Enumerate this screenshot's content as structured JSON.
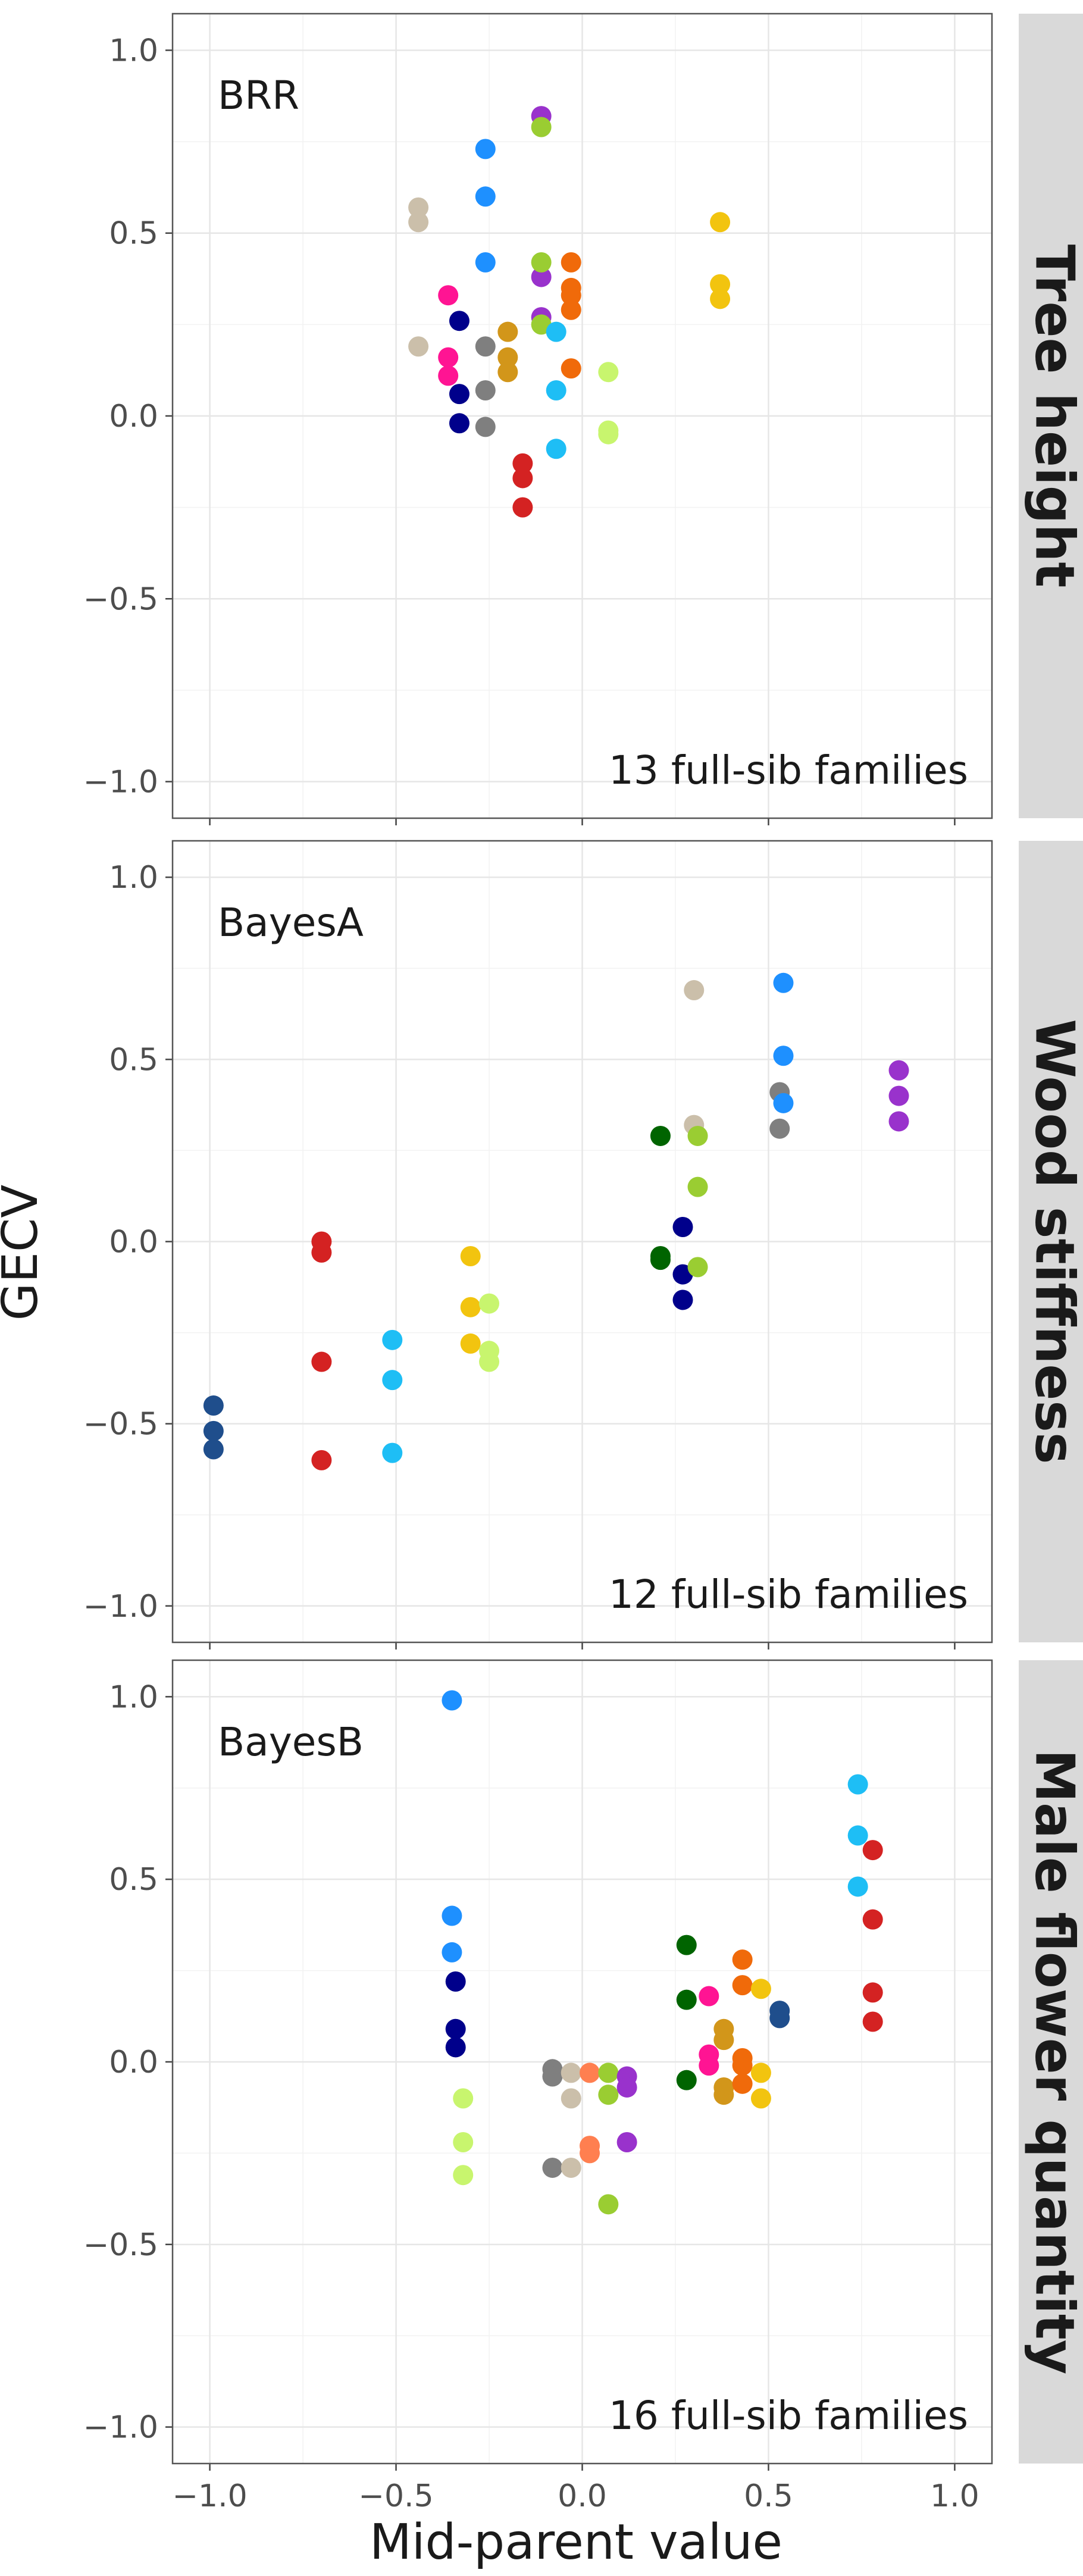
{
  "figure": {
    "xlabel": "Mid-parent value",
    "ylabel": "GECV"
  },
  "chart_data": [
    {
      "type": "scatter",
      "facet": "Tree height",
      "method": "BRR",
      "annotation": "13 full-sib families",
      "xlabel": "Mid-parent value",
      "ylabel": "GECV",
      "xlim": [
        -1.1,
        1.1
      ],
      "ylim": [
        -1.1,
        1.1
      ],
      "xticks": [
        "−1.0",
        "−0.5",
        "0.0",
        "0.5",
        "1.0"
      ],
      "yticks": [
        "−1.0",
        "−0.5",
        "0.0",
        "0.5",
        "1.0"
      ],
      "grid": true,
      "series": [
        {
          "color": "#CBBFAA",
          "points": [
            [
              -0.44,
              0.57
            ],
            [
              -0.44,
              0.53
            ],
            [
              -0.44,
              0.19
            ]
          ]
        },
        {
          "color": "#1E90FF",
          "points": [
            [
              -0.26,
              0.73
            ],
            [
              -0.26,
              0.6
            ],
            [
              -0.26,
              0.42
            ]
          ]
        },
        {
          "color": "#9932CC",
          "points": [
            [
              -0.11,
              0.82
            ],
            [
              -0.11,
              0.38
            ],
            [
              -0.11,
              0.27
            ]
          ]
        },
        {
          "color": "#9ACD32",
          "points": [
            [
              -0.11,
              0.79
            ],
            [
              -0.11,
              0.42
            ],
            [
              -0.11,
              0.25
            ]
          ]
        },
        {
          "color": "#F06A0A",
          "points": [
            [
              -0.03,
              0.42
            ],
            [
              -0.03,
              0.35
            ],
            [
              -0.03,
              0.33
            ],
            [
              -0.03,
              0.29
            ],
            [
              -0.03,
              0.13
            ]
          ]
        },
        {
          "color": "#F2C40F",
          "points": [
            [
              0.37,
              0.53
            ],
            [
              0.37,
              0.36
            ],
            [
              0.37,
              0.32
            ]
          ]
        },
        {
          "color": "#FF1493",
          "points": [
            [
              -0.36,
              0.33
            ],
            [
              -0.36,
              0.16
            ],
            [
              -0.36,
              0.11
            ]
          ]
        },
        {
          "color": "#00008B",
          "points": [
            [
              -0.33,
              0.26
            ],
            [
              -0.33,
              0.06
            ],
            [
              -0.33,
              -0.02
            ]
          ]
        },
        {
          "color": "#7F7F7F",
          "points": [
            [
              -0.26,
              0.19
            ],
            [
              -0.26,
              0.07
            ],
            [
              -0.26,
              -0.03
            ]
          ]
        },
        {
          "color": "#D2961A",
          "points": [
            [
              -0.2,
              0.23
            ],
            [
              -0.2,
              0.16
            ],
            [
              -0.2,
              0.12
            ]
          ]
        },
        {
          "color": "#1EBEF5",
          "points": [
            [
              -0.07,
              0.23
            ],
            [
              -0.07,
              0.07
            ],
            [
              -0.07,
              -0.09
            ]
          ]
        },
        {
          "color": "#C8F56E",
          "points": [
            [
              0.07,
              0.12
            ],
            [
              0.07,
              -0.04
            ],
            [
              0.07,
              -0.05
            ]
          ]
        },
        {
          "color": "#D42222",
          "points": [
            [
              -0.16,
              -0.13
            ],
            [
              -0.16,
              -0.17
            ],
            [
              -0.16,
              -0.25
            ]
          ]
        }
      ]
    },
    {
      "type": "scatter",
      "facet": "Wood stiffness",
      "method": "BayesA",
      "annotation": "12 full-sib families",
      "xlabel": "Mid-parent value",
      "ylabel": "GECV",
      "xlim": [
        -1.1,
        1.1
      ],
      "ylim": [
        -1.1,
        1.1
      ],
      "xticks": [
        "−1.0",
        "−0.5",
        "0.0",
        "0.5",
        "1.0"
      ],
      "yticks": [
        "−1.0",
        "−0.5",
        "0.0",
        "0.5",
        "1.0"
      ],
      "grid": true,
      "series": [
        {
          "color": "#1F4E8C",
          "points": [
            [
              -0.99,
              -0.45
            ],
            [
              -0.99,
              -0.52
            ],
            [
              -0.99,
              -0.57
            ]
          ]
        },
        {
          "color": "#D42222",
          "points": [
            [
              -0.7,
              0.0
            ],
            [
              -0.7,
              -0.03
            ],
            [
              -0.7,
              -0.33
            ],
            [
              -0.7,
              -0.6
            ]
          ]
        },
        {
          "color": "#1EBEF5",
          "points": [
            [
              -0.51,
              -0.27
            ],
            [
              -0.51,
              -0.38
            ],
            [
              -0.51,
              -0.58
            ]
          ]
        },
        {
          "color": "#F2C40F",
          "points": [
            [
              -0.3,
              -0.04
            ],
            [
              -0.3,
              -0.18
            ],
            [
              -0.3,
              -0.28
            ]
          ]
        },
        {
          "color": "#C8F56E",
          "points": [
            [
              -0.25,
              -0.17
            ],
            [
              -0.25,
              -0.3
            ],
            [
              -0.25,
              -0.33
            ]
          ]
        },
        {
          "color": "#006400",
          "points": [
            [
              0.21,
              0.29
            ],
            [
              0.21,
              -0.04
            ],
            [
              0.21,
              -0.05
            ]
          ]
        },
        {
          "color": "#00008B",
          "points": [
            [
              0.27,
              0.04
            ],
            [
              0.27,
              -0.09
            ],
            [
              0.27,
              -0.16
            ]
          ]
        },
        {
          "color": "#CBBFAA",
          "points": [
            [
              0.3,
              0.69
            ],
            [
              0.3,
              0.32
            ]
          ]
        },
        {
          "color": "#9ACD32",
          "points": [
            [
              0.31,
              0.29
            ],
            [
              0.31,
              0.15
            ],
            [
              0.31,
              -0.07
            ]
          ]
        },
        {
          "color": "#7F7F7F",
          "points": [
            [
              0.53,
              0.41
            ],
            [
              0.53,
              0.31
            ]
          ]
        },
        {
          "color": "#1E90FF",
          "points": [
            [
              0.54,
              0.71
            ],
            [
              0.54,
              0.51
            ],
            [
              0.54,
              0.38
            ]
          ]
        },
        {
          "color": "#9932CC",
          "points": [
            [
              0.85,
              0.47
            ],
            [
              0.85,
              0.4
            ],
            [
              0.85,
              0.33
            ]
          ]
        }
      ]
    },
    {
      "type": "scatter",
      "facet": "Male flower quantity",
      "method": "BayesB",
      "annotation": "16 full-sib families",
      "xlabel": "Mid-parent value",
      "ylabel": "GECV",
      "xlim": [
        -1.1,
        1.1
      ],
      "ylim": [
        -1.1,
        1.1
      ],
      "xticks": [
        "−1.0",
        "−0.5",
        "0.0",
        "0.5",
        "1.0"
      ],
      "yticks": [
        "−1.0",
        "−0.5",
        "0.0",
        "0.5",
        "1.0"
      ],
      "grid": true,
      "series": [
        {
          "color": "#1E90FF",
          "points": [
            [
              -0.35,
              0.99
            ],
            [
              -0.35,
              0.4
            ],
            [
              -0.35,
              0.3
            ]
          ]
        },
        {
          "color": "#00008B",
          "points": [
            [
              -0.34,
              0.22
            ],
            [
              -0.34,
              0.09
            ],
            [
              -0.34,
              0.04
            ]
          ]
        },
        {
          "color": "#C8F56E",
          "points": [
            [
              -0.32,
              -0.1
            ],
            [
              -0.32,
              -0.22
            ],
            [
              -0.32,
              -0.31
            ]
          ]
        },
        {
          "color": "#7F7F7F",
          "points": [
            [
              -0.08,
              -0.02
            ],
            [
              -0.08,
              -0.04
            ],
            [
              -0.08,
              -0.29
            ]
          ]
        },
        {
          "color": "#CBBFAA",
          "points": [
            [
              -0.03,
              -0.03
            ],
            [
              -0.03,
              -0.1
            ],
            [
              -0.03,
              -0.29
            ]
          ]
        },
        {
          "color": "#FF7F50",
          "points": [
            [
              0.02,
              -0.03
            ],
            [
              0.02,
              -0.23
            ],
            [
              0.02,
              -0.25
            ]
          ]
        },
        {
          "color": "#9ACD32",
          "points": [
            [
              0.07,
              -0.03
            ],
            [
              0.07,
              -0.09
            ],
            [
              0.07,
              -0.39
            ]
          ]
        },
        {
          "color": "#9932CC",
          "points": [
            [
              0.12,
              -0.04
            ],
            [
              0.12,
              -0.07
            ],
            [
              0.12,
              -0.22
            ]
          ]
        },
        {
          "color": "#006400",
          "points": [
            [
              0.28,
              0.32
            ],
            [
              0.28,
              0.17
            ],
            [
              0.28,
              -0.05
            ]
          ]
        },
        {
          "color": "#FF1493",
          "points": [
            [
              0.34,
              0.18
            ],
            [
              0.34,
              0.02
            ],
            [
              0.34,
              -0.01
            ]
          ]
        },
        {
          "color": "#D2961A",
          "points": [
            [
              0.38,
              0.09
            ],
            [
              0.38,
              0.06
            ],
            [
              0.38,
              -0.07
            ],
            [
              0.38,
              -0.09
            ]
          ]
        },
        {
          "color": "#F06A0A",
          "points": [
            [
              0.43,
              0.28
            ],
            [
              0.43,
              0.21
            ],
            [
              0.43,
              0.01
            ],
            [
              0.43,
              -0.01
            ],
            [
              0.43,
              -0.06
            ]
          ]
        },
        {
          "color": "#F2C40F",
          "points": [
            [
              0.48,
              0.2
            ],
            [
              0.48,
              -0.03
            ],
            [
              0.48,
              -0.1
            ]
          ]
        },
        {
          "color": "#1F4E8C",
          "points": [
            [
              0.53,
              0.14
            ],
            [
              0.53,
              0.12
            ]
          ]
        },
        {
          "color": "#1EBEF5",
          "points": [
            [
              0.74,
              0.76
            ],
            [
              0.74,
              0.62
            ],
            [
              0.74,
              0.48
            ]
          ]
        },
        {
          "color": "#D42222",
          "points": [
            [
              0.78,
              0.58
            ],
            [
              0.78,
              0.39
            ],
            [
              0.78,
              0.19
            ],
            [
              0.78,
              0.11
            ]
          ]
        }
      ]
    }
  ]
}
